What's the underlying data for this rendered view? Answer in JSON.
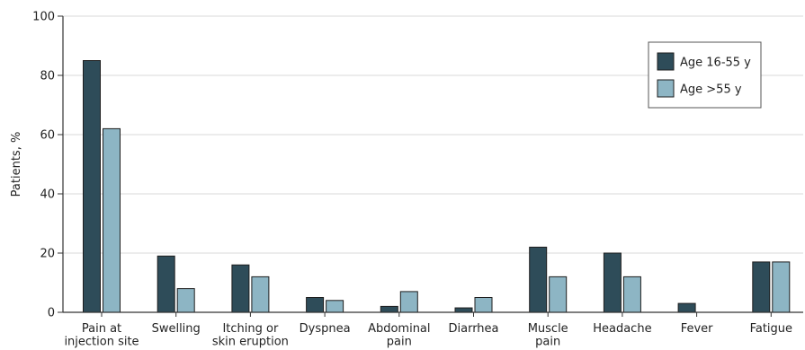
{
  "chart_data": {
    "type": "bar",
    "categories": [
      [
        "Pain at",
        "injection site"
      ],
      [
        "Swelling"
      ],
      [
        "Itching or",
        "skin eruption"
      ],
      [
        "Dyspnea"
      ],
      [
        "Abdominal",
        "pain"
      ],
      [
        "Diarrhea"
      ],
      [
        "Muscle",
        "pain"
      ],
      [
        "Headache"
      ],
      [
        "Fever"
      ],
      [
        "Fatigue"
      ]
    ],
    "series": [
      {
        "name": "Age 16-55 y",
        "color": "#2e4c59",
        "values": [
          85,
          19,
          16,
          5,
          2,
          1.5,
          22,
          20,
          3,
          17
        ]
      },
      {
        "name": "Age >55 y",
        "color": "#8db5c4",
        "values": [
          62,
          8,
          12,
          4,
          7,
          5,
          12,
          12,
          0,
          17
        ]
      }
    ],
    "ylabel": "Patients, %",
    "ylim": [
      0,
      100
    ],
    "yticks": [
      0,
      20,
      40,
      60,
      80,
      100
    ],
    "grid": true,
    "legend_position": "top-right"
  }
}
